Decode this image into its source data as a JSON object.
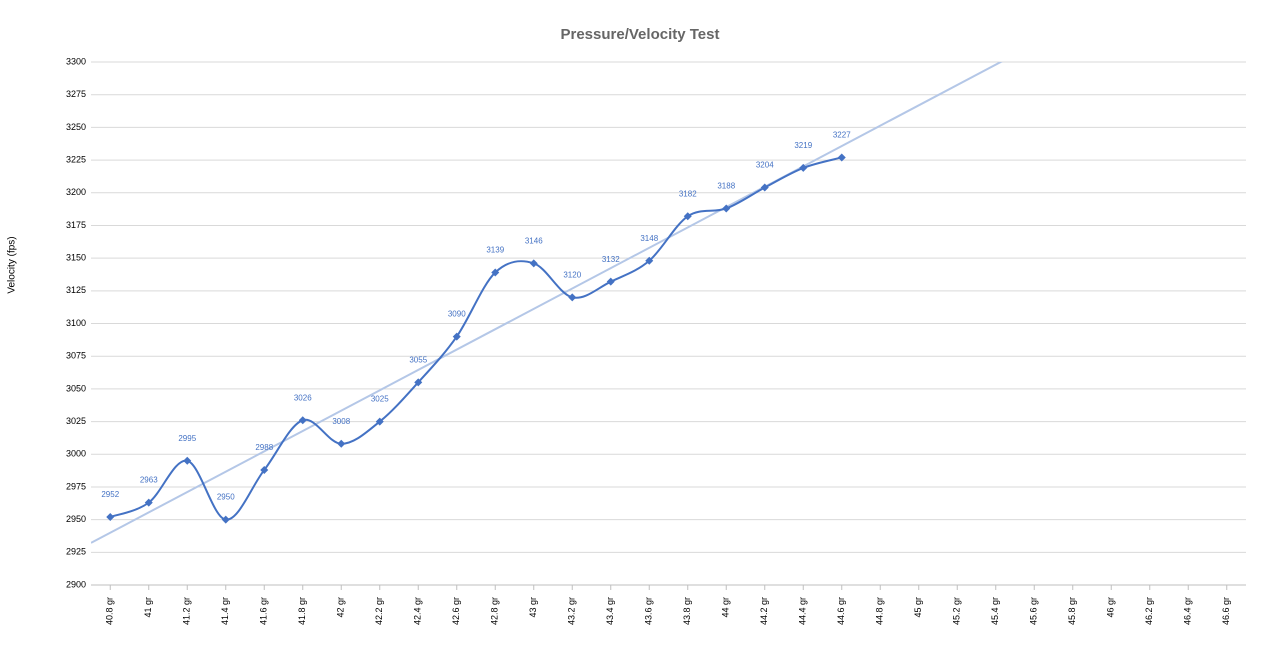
{
  "chart_data": {
    "type": "line",
    "title": "Pressure/Velocity Test",
    "y_label": "Velocity (fps)",
    "categories": [
      "40.8 gr",
      "41 gr",
      "41.2 gr",
      "41.4 gr",
      "41.6 gr",
      "41.8 gr",
      "42 gr",
      "42.2 gr",
      "42.4 gr",
      "42.6 gr",
      "42.8 gr",
      "43 gr",
      "43.2 gr",
      "43.4 gr",
      "43.6 gr",
      "43.8 gr",
      "44 gr",
      "44.2 gr",
      "44.4 gr",
      "44.6 gr",
      "44.8 gr",
      "45 gr",
      "45.2 gr",
      "45.4 gr",
      "45.6 gr",
      "45.8 gr",
      "46 gr",
      "46.2 gr",
      "46.4 gr",
      "46.6 gr"
    ],
    "series": [
      {
        "name": "Velocity",
        "color": "#4472c4",
        "values": [
          2952,
          2963,
          2995,
          2950,
          2988,
          3026,
          3008,
          3025,
          3055,
          3090,
          3139,
          3146,
          3120,
          3132,
          3148,
          3182,
          3188,
          3204,
          3219,
          3227,
          null,
          null,
          null,
          null,
          null,
          null,
          null,
          null,
          null,
          null
        ]
      }
    ],
    "trendline": "linear",
    "trendline_color": "#b4c7e7",
    "smooth": true,
    "data_labels": true,
    "ylim": [
      2900,
      3300
    ],
    "yticks": [
      2900,
      2925,
      2950,
      2975,
      3000,
      3025,
      3050,
      3075,
      3100,
      3125,
      3150,
      3175,
      3200,
      3225,
      3250,
      3275,
      3300
    ],
    "grid": true
  }
}
